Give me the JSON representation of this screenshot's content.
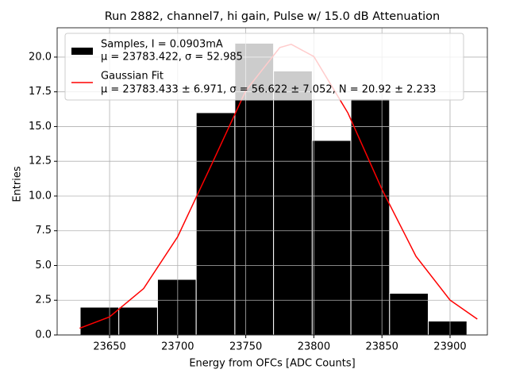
{
  "chart_data": {
    "type": "histogram",
    "title": "Run 2882, channel7, hi gain, Pulse w/ 15.0 dB Attenuation",
    "xlabel": "Energy from OFCs [ADC Counts]",
    "ylabel": "Entries",
    "bins": [
      23628.4,
      23656.8,
      23685.2,
      23713.6,
      23742.0,
      23770.4,
      23798.8,
      23827.2,
      23855.6,
      23884.0,
      23912.4
    ],
    "counts": [
      2,
      2,
      4,
      16,
      21,
      19,
      14,
      17,
      3,
      1
    ],
    "histogram_color": "#000000",
    "histogram_label": [
      "Samples, I = 0.0903mA",
      "μ = 23783.422, σ = 52.985"
    ],
    "fit": {
      "name": [
        "Gaussian Fit",
        "μ = 23783.433 ± 6.971, σ = 56.622 ± 7.052, N = 20.92 ± 2.233"
      ],
      "color": "#ff0000",
      "x": [
        23628,
        23650,
        23675,
        23700,
        23725,
        23750,
        23775,
        23783.4,
        23800,
        23825,
        23850,
        23875,
        23900,
        23920
      ],
      "values": [
        0.48,
        1.3,
        3.34,
        7.07,
        12.29,
        17.58,
        20.69,
        20.92,
        20.04,
        15.98,
        10.48,
        5.66,
        2.51,
        1.14
      ]
    },
    "xlim": [
      23611.5,
      23927.4
    ],
    "ylim": [
      0,
      22.11
    ],
    "xticks": [
      23650,
      23700,
      23750,
      23800,
      23850,
      23900
    ],
    "yticks": [
      {
        "value": 0,
        "label": "0.0"
      },
      2.5,
      {
        "value": 5,
        "label": "5.0"
      },
      7.5,
      {
        "value": 10,
        "label": "10.0"
      },
      12.5,
      {
        "value": 15,
        "label": "15.0"
      },
      17.5,
      {
        "value": 20,
        "label": "20.0"
      }
    ],
    "grid": true,
    "legend": "upper left"
  }
}
